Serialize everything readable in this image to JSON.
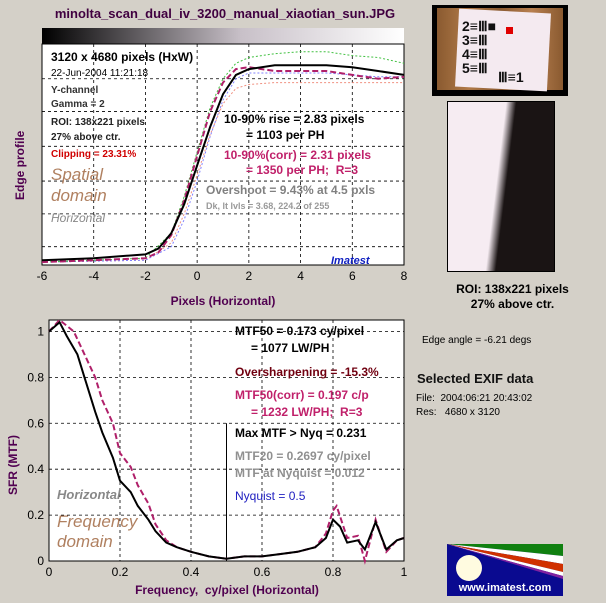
{
  "window": {
    "title": "minolta_scan_dual_iv_3200_manual_xiaotian_sun.JPG"
  },
  "edge_panel": {
    "image_size": "3120 x 4680 pixels (HxW)",
    "date": "22-Jun-2004 11:21:18",
    "channel": "Y-channel",
    "gamma": "Gamma = 2",
    "roi": "ROI: 138x221 pixels",
    "roi_pos": "27% above ctr.",
    "clipping": "Clipping = 23.31%",
    "domain1": "Spatial",
    "domain2": "domain",
    "direction": "Horizontal",
    "rise1": "10-90% rise = 2.83 pixels",
    "rise2": "= 1103 per PH",
    "corr1": "10-90%(corr) = 2.31 pixels",
    "corr2": "= 1350 per PH;  R=3",
    "overshoot": "Overshoot = 9.43% at 4.5 pxls",
    "levels": "Dk, lt lvls = 3.68, 224.2 of 255",
    "brand": "Imatest"
  },
  "mtf_panel": {
    "mtf50_1": "MTF50 = 0.173 cy/pixel",
    "mtf50_2": "= 1077 LW/PH",
    "oversharpening": "Oversharpening = -15.3%",
    "corr1": "MTF50(corr) = 0.197 c/p",
    "corr2": "= 1232 LW/PH;  R=3",
    "max_mtf": "Max MTF > Nyq = 0.231",
    "mtf20": "MTF20 = 0.2697 cy/pixel",
    "mtf_nyq": "MTF at Nyquist = 0.012",
    "nyquist": "Nyquist = 0.5",
    "direction": "Horizontal",
    "domain1": "Frequency",
    "domain2": "domain"
  },
  "side": {
    "roi": "ROI: 138x221 pixels",
    "roi_pos": "27% above ctr.",
    "edge_angle": "Edge angle = -6.21 degs",
    "exif_title": "Selected EXIF data",
    "exif_file": "File:  2004:06:21 20:43:02",
    "exif_res": "Res:   4680 x 3120",
    "logo_text": "www.imatest.com"
  },
  "chart_data": [
    {
      "type": "line",
      "ylabel": "Edge profile",
      "xlabel": "Pixels (Horizontal)",
      "xlim": [
        -6,
        8
      ],
      "ylim": [
        -0.015,
        1.13
      ],
      "xticks": [
        "-6",
        "-4",
        "-2",
        "0",
        "2",
        "4",
        "6",
        "8"
      ],
      "grid": true,
      "colors": {
        "black": "#000000",
        "magenta": "#b0206a",
        "green": "#40c040",
        "blue": "#8080ff",
        "salmon": "#f09080"
      },
      "series": [
        {
          "color": "#000000",
          "style": "solid",
          "x": [
            -6,
            -4,
            -2,
            -1.5,
            -1,
            -0.5,
            0,
            0.5,
            1,
            1.5,
            2,
            3,
            4,
            5,
            6,
            7,
            8
          ],
          "y": [
            0.01,
            0.02,
            0.04,
            0.07,
            0.15,
            0.3,
            0.5,
            0.7,
            0.87,
            0.97,
            1.0,
            1.02,
            1.02,
            1.02,
            1.01,
            0.99,
            0.97
          ]
        },
        {
          "color": "#b0206a",
          "style": "dashed",
          "x": [
            -6,
            -4,
            -2,
            -1.5,
            -1,
            -0.5,
            0,
            0.5,
            1,
            1.5,
            2,
            3,
            4,
            5,
            6,
            7,
            8
          ],
          "y": [
            0,
            0.01,
            0.02,
            0.05,
            0.14,
            0.32,
            0.55,
            0.78,
            0.93,
            1.0,
            1.01,
            0.99,
            0.99,
            0.99,
            0.97,
            0.95,
            0.96
          ]
        },
        {
          "color": "#40c040",
          "style": "dotted",
          "x": [
            -6,
            -2,
            -1,
            -0.5,
            0,
            0.5,
            1,
            1.5,
            2,
            3,
            4,
            5,
            6,
            7,
            8
          ],
          "y": [
            0,
            0.02,
            0.15,
            0.34,
            0.57,
            0.8,
            0.95,
            1.03,
            1.06,
            1.08,
            1.09,
            1.09,
            1.07,
            1.06,
            1.03
          ]
        },
        {
          "color": "#8080ff",
          "style": "dotted",
          "x": [
            -6,
            -2,
            -1,
            -0.5,
            0,
            0.5,
            1,
            1.5,
            2,
            3,
            4,
            5,
            6,
            7,
            8
          ],
          "y": [
            0,
            0.01,
            0.08,
            0.22,
            0.42,
            0.65,
            0.84,
            0.95,
            0.98,
            0.98,
            0.98,
            0.98,
            0.97,
            0.96,
            0.96
          ]
        },
        {
          "color": "#f09080",
          "style": "dotted",
          "x": [
            -6,
            -2,
            -1,
            -0.5,
            0,
            0.5,
            1,
            1.5,
            2,
            3,
            4,
            5,
            6,
            7,
            8
          ],
          "y": [
            0,
            0.01,
            0.1,
            0.25,
            0.45,
            0.66,
            0.82,
            0.9,
            0.92,
            0.93,
            0.93,
            0.93,
            0.93,
            0.93,
            0.93
          ]
        }
      ]
    },
    {
      "type": "line",
      "ylabel": "SFR (MTF)",
      "xlabel": "Frequency,  cy/pixel (Horizontal)",
      "xlim": [
        0,
        1
      ],
      "ylim": [
        0,
        1.05
      ],
      "xticks": [
        "0",
        "0.2",
        "0.4",
        "0.6",
        "0.8",
        "1"
      ],
      "yticks": [
        "0",
        "0.2",
        "0.4",
        "0.6",
        "0.8",
        "1"
      ],
      "grid": true,
      "nyquist_marker": 0.5,
      "series": [
        {
          "color": "#000000",
          "style": "solid",
          "x": [
            0,
            0.03,
            0.05,
            0.08,
            0.1,
            0.13,
            0.15,
            0.18,
            0.2,
            0.23,
            0.25,
            0.28,
            0.3,
            0.33,
            0.36,
            0.4,
            0.45,
            0.5,
            0.55,
            0.6,
            0.65,
            0.7,
            0.75,
            0.78,
            0.8,
            0.82,
            0.84,
            0.87,
            0.89,
            0.92,
            0.95,
            0.98,
            1.0
          ],
          "y": [
            1.0,
            1.04,
            0.98,
            0.9,
            0.8,
            0.65,
            0.56,
            0.45,
            0.35,
            0.3,
            0.24,
            0.18,
            0.13,
            0.08,
            0.06,
            0.04,
            0.02,
            0.01,
            0.02,
            0.02,
            0.03,
            0.04,
            0.06,
            0.1,
            0.18,
            0.15,
            0.08,
            0.09,
            0.05,
            0.17,
            0.05,
            0.09,
            0.1
          ]
        },
        {
          "color": "#b0206a",
          "style": "dashed",
          "x": [
            0,
            0.03,
            0.07,
            0.1,
            0.13,
            0.15,
            0.18,
            0.2,
            0.23,
            0.25,
            0.28,
            0.3,
            0.33,
            0.36,
            0.4,
            0.45,
            0.5,
            0.55,
            0.6,
            0.65,
            0.7,
            0.75,
            0.78,
            0.8,
            0.81,
            0.84,
            0.87,
            0.89,
            0.92,
            0.95,
            0.98,
            1.0
          ],
          "y": [
            1.0,
            1.05,
            1.0,
            0.9,
            0.8,
            0.7,
            0.6,
            0.47,
            0.41,
            0.33,
            0.25,
            0.16,
            0.09,
            0.06,
            0.04,
            0.02,
            0.01,
            0.02,
            0.02,
            0.03,
            0.04,
            0.06,
            0.12,
            0.22,
            0.24,
            0.1,
            0.11,
            0.0,
            0.18,
            0.04,
            0.09,
            0.1
          ]
        }
      ]
    }
  ]
}
